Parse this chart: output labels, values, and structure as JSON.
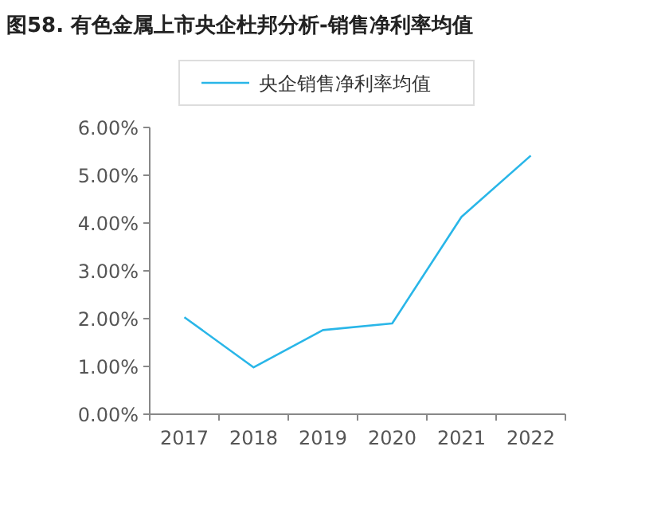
{
  "chart_data": {
    "type": "line",
    "title": "图58. 有色金属上市央企杜邦分析-销售净利率均值",
    "categories": [
      "2017",
      "2018",
      "2019",
      "2020",
      "2021",
      "2022"
    ],
    "series": [
      {
        "name": "央企销售净利率均值",
        "color": "#29b6e8",
        "values": [
          2.03,
          0.98,
          1.76,
          1.9,
          4.13,
          5.41
        ]
      }
    ],
    "ylim": [
      0,
      6
    ],
    "yticks": [
      {
        "value": 0,
        "label": "0.00%"
      },
      {
        "value": 1,
        "label": "1.00%"
      },
      {
        "value": 2,
        "label": "2.00%"
      },
      {
        "value": 3,
        "label": "3.00%"
      },
      {
        "value": 4,
        "label": "4.00%"
      },
      {
        "value": 5,
        "label": "5.00%"
      },
      {
        "value": 6,
        "label": "6.00%"
      }
    ],
    "legend": "top",
    "grid": false
  }
}
